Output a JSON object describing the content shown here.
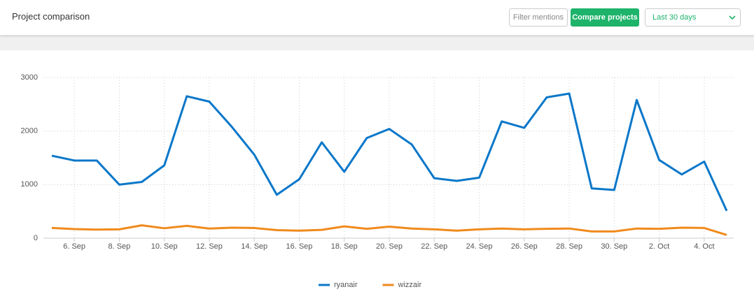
{
  "header": {
    "title": "Project comparison",
    "filter_button": "Filter mentions",
    "compare_button": "Compare projects",
    "date_range": "Last 30 days"
  },
  "chart_data": {
    "type": "line",
    "categories": [
      null,
      "6. Sep",
      null,
      "8. Sep",
      null,
      "10. Sep",
      null,
      "12. Sep",
      null,
      "14. Sep",
      null,
      "16. Sep",
      null,
      "18. Sep",
      null,
      "20. Sep",
      null,
      "22. Sep",
      null,
      "24. Sep",
      null,
      "26. Sep",
      null,
      "28. Sep",
      null,
      "30. Sep",
      null,
      "2. Oct",
      null,
      "4. Oct",
      null
    ],
    "series": [
      {
        "name": "ryanair",
        "color": "#0a77c9",
        "values": [
          1540,
          1450,
          1450,
          1000,
          1050,
          1360,
          2650,
          2550,
          2080,
          1560,
          810,
          1100,
          1790,
          1240,
          1870,
          2040,
          1750,
          1120,
          1070,
          1130,
          2180,
          2060,
          2630,
          2700,
          930,
          900,
          2580,
          1460,
          1190,
          1430,
          510
        ]
      },
      {
        "name": "wizzair",
        "color": "#f08a1c",
        "values": [
          190,
          170,
          160,
          165,
          240,
          185,
          230,
          180,
          195,
          190,
          150,
          140,
          155,
          220,
          175,
          215,
          180,
          165,
          140,
          165,
          180,
          165,
          175,
          180,
          125,
          125,
          180,
          175,
          195,
          190,
          60
        ]
      }
    ],
    "ylim": [
      0,
      3000
    ],
    "yticks": [
      0,
      1000,
      2000,
      3000
    ],
    "grid": true,
    "legend": "bottom"
  }
}
